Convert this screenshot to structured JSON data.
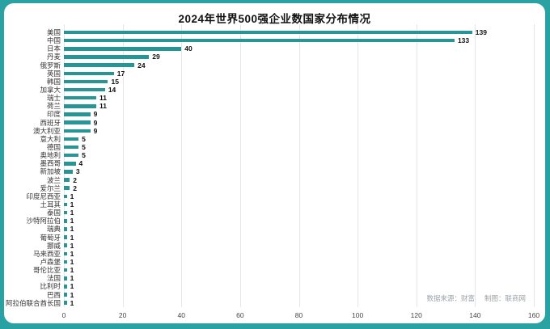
{
  "page": {
    "title": "2024年世界500强企业数国家分布情况"
  },
  "source_note": {
    "left": "数据来源：财富",
    "right": "制图：联商网"
  },
  "colors": {
    "frame": "#2aa1a2",
    "bar": "#279595",
    "grid": "#e4e7e7",
    "muted": "#9aa3a8"
  },
  "chart_data": {
    "type": "bar",
    "orientation": "horizontal",
    "title": "2024年世界500强企业数国家分布情况",
    "categories": [
      "美国",
      "中国",
      "日本",
      "丹麦",
      "俄罗斯",
      "英国",
      "韩国",
      "加拿大",
      "瑞士",
      "荷兰",
      "印度",
      "西班牙",
      "澳大利亚",
      "意大利",
      "德国",
      "奥地利",
      "墨西哥",
      "新加坡",
      "波兰",
      "爱尔兰",
      "印度尼西亚",
      "土耳其",
      "泰国",
      "沙特阿拉伯",
      "瑞典",
      "葡萄牙",
      "挪威",
      "马来西亚",
      "卢森堡",
      "哥伦比亚",
      "法国",
      "比利时",
      "巴西",
      "阿拉伯联合酋长国"
    ],
    "values": [
      139,
      133,
      40,
      29,
      24,
      17,
      15,
      14,
      11,
      11,
      9,
      9,
      9,
      5,
      5,
      5,
      4,
      3,
      2,
      2,
      1,
      1,
      1,
      1,
      1,
      1,
      1,
      1,
      1,
      1,
      1,
      1,
      1,
      1
    ],
    "xlabel": "",
    "ylabel": "",
    "xlim": [
      0,
      160
    ],
    "xticks": [
      0,
      20,
      40,
      60,
      80,
      100,
      120,
      140,
      160
    ],
    "grid": true,
    "value_labels": true,
    "legend": false
  }
}
